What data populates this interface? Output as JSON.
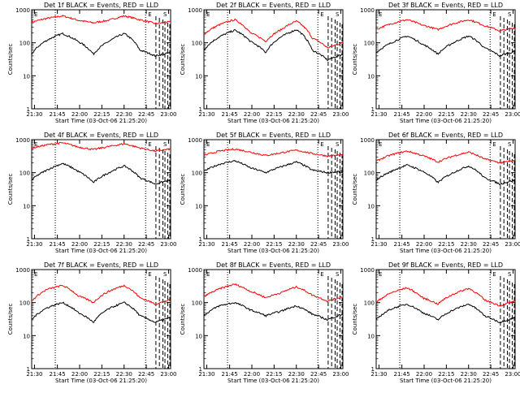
{
  "chart_data": {
    "type": "line",
    "y_scale": "log",
    "ylim": [
      1,
      1000
    ],
    "y_ticks": [
      "1",
      "10",
      "100",
      "1000"
    ],
    "ylabel": "Counts/sec",
    "xlabel": "Start Time (03-Oct-06 21:25:20)",
    "x_ticks": [
      "21:30",
      "21:45",
      "22:00",
      "22:15",
      "22:30",
      "22:45",
      "23:00"
    ],
    "series_colors": {
      "events": "#000000",
      "lld": "#ff0000"
    },
    "markers": [
      "E",
      "E",
      "S"
    ],
    "panels": [
      {
        "title": "Det 1f BLACK = Events, RED = LLD",
        "events": [
          45,
          120,
          190,
          110,
          45,
          110,
          190,
          60,
          40,
          50
        ],
        "lld": [
          420,
          550,
          650,
          480,
          400,
          480,
          650,
          500,
          380,
          430
        ]
      },
      {
        "title": "Det 2f BLACK = Events, RED = LLD",
        "events": [
          60,
          150,
          240,
          110,
          50,
          150,
          250,
          60,
          30,
          45
        ],
        "lld": [
          180,
          350,
          500,
          200,
          110,
          250,
          450,
          140,
          70,
          100
        ]
      },
      {
        "title": "Det 3f BLACK = Events, RED = LLD",
        "events": [
          50,
          100,
          160,
          90,
          45,
          100,
          160,
          70,
          40,
          55
        ],
        "lld": [
          250,
          380,
          500,
          340,
          250,
          380,
          500,
          330,
          230,
          280
        ]
      },
      {
        "title": "Det 4f BLACK = Events, RED = LLD",
        "events": [
          60,
          120,
          190,
          110,
          50,
          100,
          160,
          70,
          45,
          60
        ],
        "lld": [
          550,
          700,
          800,
          600,
          500,
          620,
          750,
          560,
          450,
          520
        ]
      },
      {
        "title": "Det 5f BLACK = Events, RED = LLD",
        "events": [
          110,
          180,
          230,
          140,
          100,
          150,
          210,
          120,
          100,
          110
        ],
        "lld": [
          330,
          450,
          520,
          420,
          330,
          400,
          480,
          380,
          320,
          340
        ]
      },
      {
        "title": "Det 6f BLACK = Events, RED = LLD",
        "events": [
          60,
          110,
          170,
          110,
          50,
          100,
          160,
          70,
          45,
          60
        ],
        "lld": [
          220,
          350,
          450,
          330,
          210,
          320,
          420,
          260,
          200,
          230
        ]
      },
      {
        "title": "Det 7f BLACK = Events, RED = LLD",
        "events": [
          30,
          70,
          100,
          50,
          25,
          65,
          100,
          40,
          25,
          35
        ],
        "lld": [
          110,
          250,
          330,
          160,
          100,
          220,
          330,
          140,
          90,
          120
        ]
      },
      {
        "title": "Det 8f BLACK = Events, RED = LLD",
        "events": [
          40,
          80,
          100,
          60,
          40,
          55,
          80,
          45,
          30,
          45
        ],
        "lld": [
          150,
          260,
          360,
          220,
          140,
          200,
          300,
          170,
          110,
          150
        ]
      },
      {
        "title": "Det 9f BLACK = Events, RED = LLD",
        "events": [
          30,
          65,
          90,
          50,
          30,
          60,
          90,
          40,
          25,
          35
        ],
        "lld": [
          100,
          200,
          280,
          140,
          90,
          180,
          270,
          120,
          80,
          110
        ]
      }
    ]
  }
}
